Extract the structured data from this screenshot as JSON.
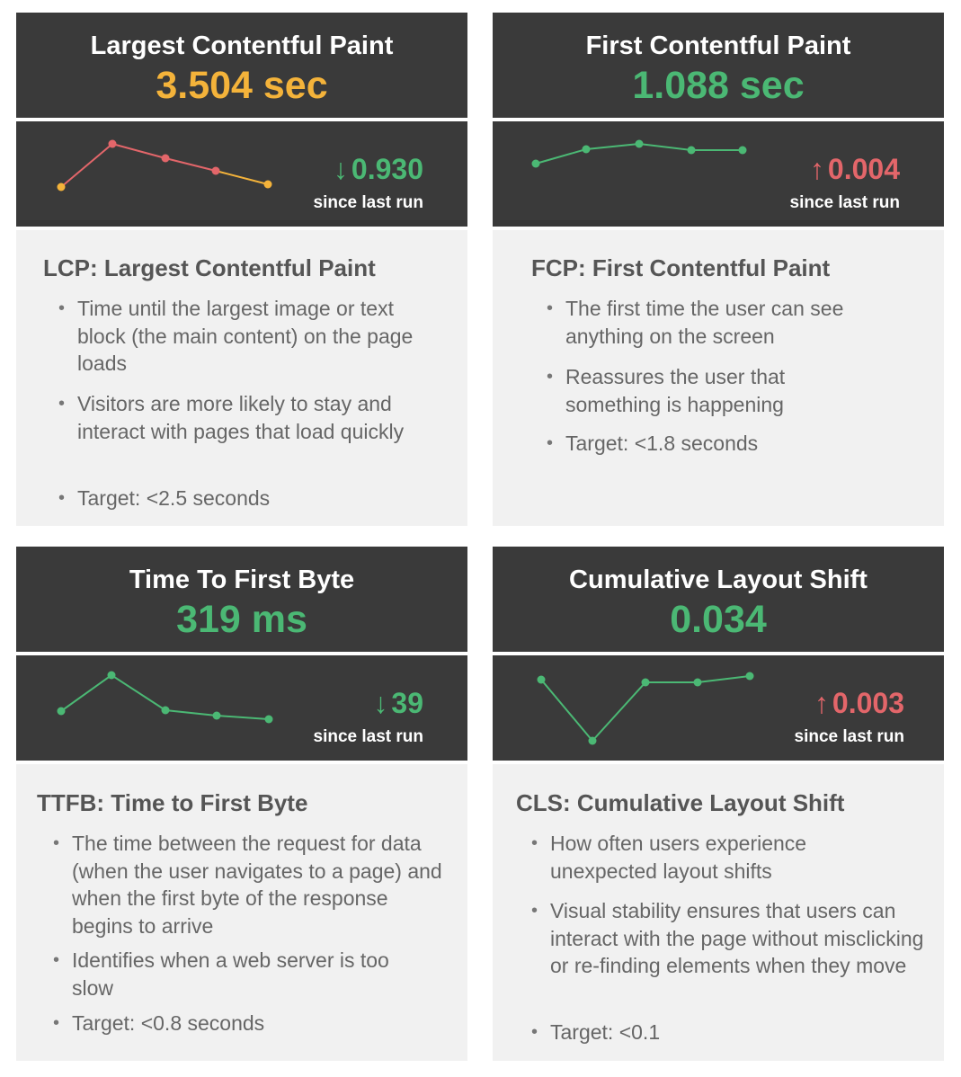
{
  "colors": {
    "good": "#4bb874",
    "warn": "#f4b33a",
    "bad": "#e3666a",
    "panel": "#3a3a3a",
    "desc_bg": "#f1f1f1"
  },
  "lcp": {
    "title": "Largest Contentful Paint",
    "value": "3.504 sec",
    "trend_direction": "down",
    "trend_arrow": "↓",
    "delta": "0.930",
    "since": "since last run",
    "desc_title": "LCP: Largest Contentful Paint",
    "bullets": [
      "Time until the largest image or text block (the main content) on the page loads",
      "Visitors are more likely to stay and interact with pages that load quickly",
      "Target: <2.5 seconds"
    ]
  },
  "fcp": {
    "title": "First Contentful Paint",
    "value": "1.088 sec",
    "trend_direction": "up",
    "trend_arrow": "↑",
    "delta": "0.004",
    "since": "since last run",
    "desc_title": "FCP: First Contentful Paint",
    "bullets": [
      "The first time the user can see anything on the screen",
      "Reassures the user that something is happening",
      "Target: <1.8 seconds"
    ]
  },
  "ttfb": {
    "title": "Time To First Byte",
    "value": "319 ms",
    "trend_direction": "down",
    "trend_arrow": "↓",
    "delta": "39",
    "since": "since last run",
    "desc_title": "TTFB: Time to First Byte",
    "bullets": [
      "The time between the request for data (when the user navigates to a page) and when the first byte of the response begins to arrive",
      "Identifies when a web server is too slow",
      "Target: <0.8 seconds"
    ]
  },
  "cls": {
    "title": "Cumulative Layout Shift",
    "value": "0.034",
    "trend_direction": "up",
    "trend_arrow": "↑",
    "delta": "0.003",
    "since": "since last run",
    "desc_title": "CLS: Cumulative Layout Shift",
    "bullets": [
      "How often users experience unexpected layout shifts",
      "Visual stability ensures that users can interact with the page without misclicking or re-finding elements when they move",
      "Target: <0.1"
    ]
  }
}
